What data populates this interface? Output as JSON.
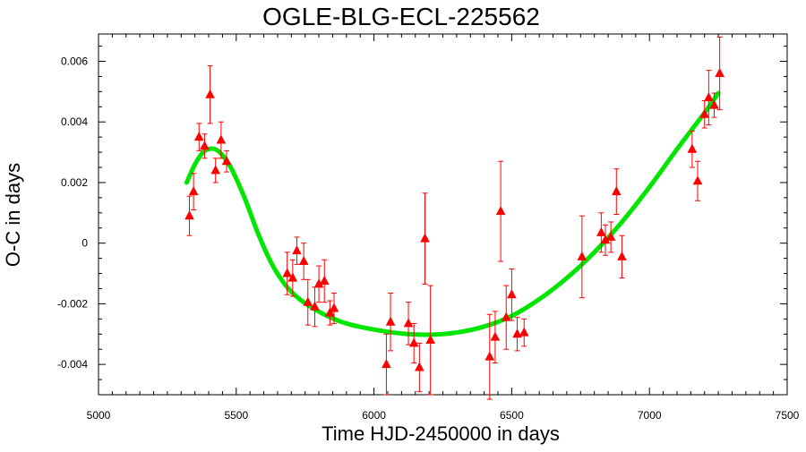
{
  "chart_data": {
    "type": "scatter",
    "title": "OGLE-BLG-ECL-225562",
    "xlabel": "Time HJD-2450000 in days",
    "ylabel": "O-C in days",
    "xlim": [
      5000,
      7500
    ],
    "ylim": [
      -0.005,
      0.0069
    ],
    "xticks": [
      5000,
      5500,
      6000,
      6500,
      7000,
      7500
    ],
    "xtick_labels": [
      "5000",
      "5500",
      "6000",
      "6500",
      "7000",
      "7500"
    ],
    "yticks": [
      -0.004,
      -0.002,
      0,
      0.002,
      0.004,
      0.006
    ],
    "ytick_labels": [
      "-0.004",
      "-0.002",
      "0",
      "0.002",
      "0.004",
      "0.006"
    ],
    "grid": false,
    "series": [
      {
        "type": "scatter",
        "marker": "triangle",
        "color": "#ff0000",
        "points": [
          {
            "x": 5330,
            "y": 0.0009,
            "err": 0.00065
          },
          {
            "x": 5345,
            "y": 0.0017,
            "err": 0.0006
          },
          {
            "x": 5365,
            "y": 0.0035,
            "err": 0.00045
          },
          {
            "x": 5385,
            "y": 0.0032,
            "err": 0.0004
          },
          {
            "x": 5405,
            "y": 0.0049,
            "err": 0.00095
          },
          {
            "x": 5425,
            "y": 0.0024,
            "err": 0.0004
          },
          {
            "x": 5445,
            "y": 0.0034,
            "err": 0.0006
          },
          {
            "x": 5465,
            "y": 0.0027,
            "err": 0.00035
          },
          {
            "x": 5685,
            "y": -0.001,
            "err": 0.0007
          },
          {
            "x": 5705,
            "y": -0.00115,
            "err": 0.0006
          },
          {
            "x": 5720,
            "y": -0.00025,
            "err": 0.00045
          },
          {
            "x": 5745,
            "y": -0.0006,
            "err": 0.0006
          },
          {
            "x": 5760,
            "y": -0.00195,
            "err": 0.00075
          },
          {
            "x": 5785,
            "y": -0.0021,
            "err": 0.00065
          },
          {
            "x": 5800,
            "y": -0.00135,
            "err": 0.0006
          },
          {
            "x": 5820,
            "y": -0.00125,
            "err": 0.0007
          },
          {
            "x": 5840,
            "y": -0.0023,
            "err": 0.0004
          },
          {
            "x": 5855,
            "y": -0.00215,
            "err": 0.0005
          },
          {
            "x": 6045,
            "y": -0.004,
            "err": 0.001
          },
          {
            "x": 6060,
            "y": -0.0026,
            "err": 0.00095
          },
          {
            "x": 6125,
            "y": -0.00265,
            "err": 0.0007
          },
          {
            "x": 6145,
            "y": -0.0033,
            "err": 0.00065
          },
          {
            "x": 6165,
            "y": -0.0041,
            "err": 0.0008
          },
          {
            "x": 6185,
            "y": 0.00015,
            "err": 0.0015
          },
          {
            "x": 6205,
            "y": -0.0032,
            "err": 0.0018
          },
          {
            "x": 6420,
            "y": -0.00375,
            "err": 0.0014
          },
          {
            "x": 6440,
            "y": -0.0031,
            "err": 0.00085
          },
          {
            "x": 6460,
            "y": 0.00105,
            "err": 0.00165
          },
          {
            "x": 6480,
            "y": -0.00245,
            "err": 0.00105
          },
          {
            "x": 6500,
            "y": -0.0017,
            "err": 0.00085
          },
          {
            "x": 6520,
            "y": -0.003,
            "err": 0.00055
          },
          {
            "x": 6545,
            "y": -0.00295,
            "err": 0.00045
          },
          {
            "x": 6755,
            "y": -0.00045,
            "err": 0.00135
          },
          {
            "x": 6825,
            "y": 0.00035,
            "err": 0.00065
          },
          {
            "x": 6840,
            "y": 0.0001,
            "err": 0.0005
          },
          {
            "x": 6860,
            "y": 0.0002,
            "err": 0.0005
          },
          {
            "x": 6880,
            "y": 0.0017,
            "err": 0.00075
          },
          {
            "x": 6900,
            "y": -0.00045,
            "err": 0.0007
          },
          {
            "x": 7155,
            "y": 0.0031,
            "err": 0.0006
          },
          {
            "x": 7175,
            "y": 0.00205,
            "err": 0.00065
          },
          {
            "x": 7200,
            "y": 0.00425,
            "err": 0.00045
          },
          {
            "x": 7215,
            "y": 0.0048,
            "err": 0.0009
          },
          {
            "x": 7235,
            "y": 0.00455,
            "err": 0.0004
          },
          {
            "x": 7255,
            "y": 0.0056,
            "err": 0.0012
          }
        ]
      },
      {
        "type": "line",
        "color": "#00e600",
        "points": [
          {
            "x": 5320,
            "y": 0.002
          },
          {
            "x": 5350,
            "y": 0.0026
          },
          {
            "x": 5380,
            "y": 0.003
          },
          {
            "x": 5410,
            "y": 0.00312
          },
          {
            "x": 5440,
            "y": 0.003
          },
          {
            "x": 5480,
            "y": 0.0025
          },
          {
            "x": 5530,
            "y": 0.0015
          },
          {
            "x": 5580,
            "y": 0.0003
          },
          {
            "x": 5630,
            "y": -0.0007
          },
          {
            "x": 5680,
            "y": -0.0014
          },
          {
            "x": 5730,
            "y": -0.00185
          },
          {
            "x": 5780,
            "y": -0.00215
          },
          {
            "x": 5830,
            "y": -0.0024
          },
          {
            "x": 5900,
            "y": -0.00265
          },
          {
            "x": 6000,
            "y": -0.00285
          },
          {
            "x": 6100,
            "y": -0.00298
          },
          {
            "x": 6200,
            "y": -0.00302
          },
          {
            "x": 6300,
            "y": -0.00295
          },
          {
            "x": 6400,
            "y": -0.00275
          },
          {
            "x": 6500,
            "y": -0.0024
          },
          {
            "x": 6600,
            "y": -0.00185
          },
          {
            "x": 6700,
            "y": -0.00115
          },
          {
            "x": 6800,
            "y": -0.0003
          },
          {
            "x": 6900,
            "y": 0.0007
          },
          {
            "x": 7000,
            "y": 0.00185
          },
          {
            "x": 7100,
            "y": 0.0031
          },
          {
            "x": 7200,
            "y": 0.0043
          },
          {
            "x": 7250,
            "y": 0.00495
          }
        ]
      }
    ]
  }
}
